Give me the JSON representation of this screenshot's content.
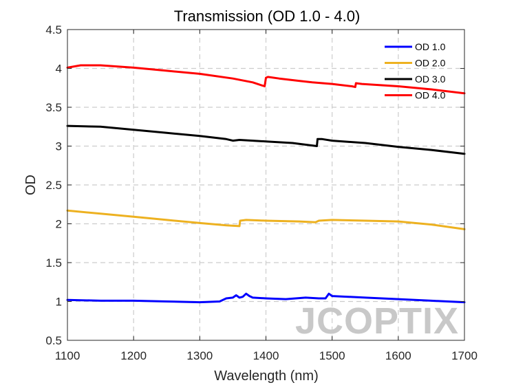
{
  "chart_data": {
    "type": "line",
    "title": "Transmission (OD 1.0 - 4.0)",
    "xlabel": "Wavelength (nm)",
    "ylabel": "OD",
    "xlim": [
      1100,
      1700
    ],
    "ylim": [
      0.5,
      4.5
    ],
    "xticks": [
      "1100",
      "1200",
      "1300",
      "1400",
      "1500",
      "1600",
      "1700"
    ],
    "yticks": [
      "0.5",
      "1",
      "1.5",
      "2",
      "2.5",
      "3",
      "3.5",
      "4",
      "4.5"
    ],
    "grid": true,
    "legend_position": "top-right",
    "series": [
      {
        "name": "OD 1.0",
        "color": "#0000ff",
        "x": [
          1100,
          1150,
          1200,
          1250,
          1300,
          1330,
          1340,
          1350,
          1355,
          1360,
          1365,
          1370,
          1375,
          1380,
          1400,
          1430,
          1460,
          1480,
          1490,
          1495,
          1500,
          1550,
          1600,
          1650,
          1700
        ],
        "y": [
          1.02,
          1.01,
          1.01,
          1.0,
          0.99,
          1.0,
          1.04,
          1.05,
          1.08,
          1.05,
          1.06,
          1.1,
          1.07,
          1.05,
          1.04,
          1.03,
          1.05,
          1.04,
          1.04,
          1.1,
          1.07,
          1.05,
          1.03,
          1.01,
          0.99
        ]
      },
      {
        "name": "OD 2.0",
        "color": "#edb120",
        "x": [
          1100,
          1150,
          1200,
          1250,
          1300,
          1340,
          1360,
          1361,
          1370,
          1400,
          1450,
          1475,
          1480,
          1500,
          1550,
          1600,
          1650,
          1700
        ],
        "y": [
          2.17,
          2.13,
          2.09,
          2.05,
          2.01,
          1.98,
          1.97,
          2.04,
          2.05,
          2.04,
          2.03,
          2.02,
          2.04,
          2.05,
          2.04,
          2.03,
          1.99,
          1.93
        ]
      },
      {
        "name": "OD 3.0",
        "color": "#000000",
        "x": [
          1100,
          1150,
          1200,
          1250,
          1300,
          1340,
          1350,
          1360,
          1400,
          1440,
          1477,
          1478,
          1485,
          1500,
          1550,
          1600,
          1650,
          1700
        ],
        "y": [
          3.26,
          3.25,
          3.21,
          3.17,
          3.13,
          3.09,
          3.07,
          3.08,
          3.06,
          3.04,
          3.0,
          3.09,
          3.09,
          3.07,
          3.04,
          2.99,
          2.95,
          2.9
        ]
      },
      {
        "name": "OD 4.0",
        "color": "#ff0000",
        "x": [
          1100,
          1120,
          1150,
          1200,
          1250,
          1300,
          1350,
          1380,
          1398,
          1400,
          1403,
          1420,
          1450,
          1470,
          1500,
          1530,
          1535,
          1536,
          1545,
          1600,
          1650,
          1700
        ],
        "y": [
          4.01,
          4.04,
          4.04,
          4.01,
          3.97,
          3.93,
          3.87,
          3.82,
          3.77,
          3.88,
          3.89,
          3.87,
          3.84,
          3.82,
          3.8,
          3.77,
          3.76,
          3.81,
          3.8,
          3.77,
          3.73,
          3.68
        ]
      }
    ]
  },
  "watermark": {
    "text": "JCOPTIX",
    "color": "#c8c8c8",
    "accent_color": "#f2c7a5"
  }
}
